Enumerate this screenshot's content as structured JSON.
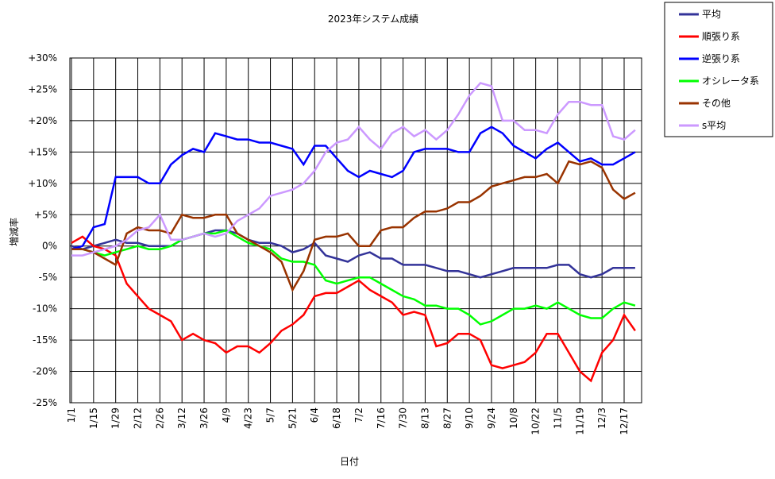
{
  "chart_data": {
    "type": "line",
    "title": "2023年システム成績",
    "x_label": "日付",
    "y_label": "増減率",
    "categories": [
      "1/1",
      null,
      "1/15",
      null,
      "1/29",
      null,
      "2/12",
      null,
      "2/26",
      null,
      "3/12",
      null,
      "3/26",
      null,
      "4/9",
      null,
      "4/23",
      null,
      "5/7",
      null,
      "5/21",
      null,
      "6/4",
      null,
      "6/18",
      null,
      "7/2",
      null,
      "7/16",
      null,
      "7/30",
      null,
      "8/13",
      null,
      "8/27",
      null,
      "9/10",
      null,
      "9/24",
      null,
      "10/8",
      null,
      "10/22",
      null,
      "11/5",
      null,
      "11/19",
      null,
      "12/3",
      null,
      "12/17",
      null
    ],
    "ylim": [
      -25,
      30
    ],
    "yticks": [
      {
        "value": 30,
        "label": "+30%"
      },
      {
        "value": 25,
        "label": "+25%"
      },
      {
        "value": 20,
        "label": "+20%"
      },
      {
        "value": 15,
        "label": "+15%"
      },
      {
        "value": 10,
        "label": "+10%"
      },
      {
        "value": 5,
        "label": "+5%"
      },
      {
        "value": 0,
        "label": "0%"
      },
      {
        "value": -5,
        "label": "-5%"
      },
      {
        "value": -10,
        "label": "-10%"
      },
      {
        "value": -15,
        "label": "-15%"
      },
      {
        "value": -20,
        "label": "-20%"
      },
      {
        "value": -25,
        "label": "-25%"
      }
    ],
    "grid": true,
    "legend": "outside-top-right",
    "series": [
      {
        "name": "平均",
        "color": "#333399",
        "values": [
          0,
          -0.5,
          0,
          0.5,
          1,
          0.5,
          0.5,
          0,
          0,
          0,
          1,
          1.5,
          2,
          2.5,
          2.5,
          2,
          1,
          0.5,
          0.5,
          0,
          -1,
          -0.5,
          0.5,
          -1.5,
          -2,
          -2.5,
          -1.5,
          -1,
          -2,
          -2,
          -3,
          -3,
          -3,
          -3.5,
          -4,
          -4,
          -4.5,
          -5,
          -4.5,
          -4,
          -3.5,
          -3.5,
          -3.5,
          -3.5,
          -3,
          -3,
          -4.5,
          -5,
          -4.5,
          -3.5,
          -3.5,
          -3.5
        ]
      },
      {
        "name": "順張り系",
        "color": "#ff0000",
        "values": [
          0.5,
          1.5,
          0,
          -0.5,
          -1.5,
          -6,
          -8,
          -10,
          -11,
          -12,
          -15,
          -14,
          -15,
          -15.5,
          -17,
          -16,
          -16,
          -17,
          -15.5,
          -13.5,
          -12.5,
          -11,
          -8,
          -7.5,
          -7.5,
          -6.5,
          -5.5,
          -7,
          -8,
          -9,
          -11,
          -10.5,
          -11,
          -16,
          -15.5,
          -14,
          -14,
          -15,
          -19,
          -19.5,
          -19,
          -18.5,
          -17,
          -14,
          -14,
          -17,
          -20,
          -21.5,
          -17,
          -15,
          -11,
          -13.5
        ]
      },
      {
        "name": "逆張り系",
        "color": "#0000ff",
        "values": [
          -0.5,
          0,
          3,
          3.5,
          11,
          11,
          11,
          10,
          10,
          13,
          14.5,
          15.5,
          15,
          18,
          17.5,
          17,
          17,
          16.5,
          16.5,
          16,
          15.5,
          13,
          16,
          16,
          14,
          12,
          11,
          12,
          11.5,
          11,
          12,
          15,
          15.5,
          15.5,
          15.5,
          15,
          15,
          18,
          19,
          18,
          16,
          15,
          14,
          15.5,
          16.5,
          15,
          13.5,
          14,
          13,
          13,
          14,
          15
        ]
      },
      {
        "name": "オシレータ系",
        "color": "#00ff00",
        "values": [
          -0.5,
          -0.5,
          -1,
          -1.5,
          -1,
          -0.5,
          0,
          -0.5,
          -0.5,
          0,
          1,
          1.5,
          2,
          2,
          2.5,
          1.5,
          0.5,
          0,
          -0.5,
          -2,
          -2.5,
          -2.5,
          -3,
          -5.5,
          -6,
          -5.5,
          -5,
          -5,
          -6,
          -7,
          -8,
          -8.5,
          -9.5,
          -9.5,
          -10,
          -10,
          -11,
          -12.5,
          -12,
          -11,
          -10,
          -10,
          -9.5,
          -10,
          -9,
          -10,
          -11,
          -11.5,
          -11.5,
          -10,
          -9,
          -9.5
        ]
      },
      {
        "name": "その他",
        "color": "#993300",
        "values": [
          -0.5,
          -0.5,
          -1,
          -2,
          -3,
          2,
          3,
          2.5,
          2.5,
          2,
          5,
          4.5,
          4.5,
          5,
          5,
          2,
          1,
          0,
          -1,
          -2.5,
          -7,
          -4,
          1,
          1.5,
          1.5,
          2,
          0,
          0,
          2.5,
          3,
          3,
          4.5,
          5.5,
          5.5,
          6,
          7,
          7,
          8,
          9.5,
          10,
          10.5,
          11,
          11,
          11.5,
          10,
          13.5,
          13,
          13.5,
          12.5,
          9,
          7.5,
          8.5
        ]
      },
      {
        "name": "s平均",
        "color": "#cc99ff",
        "values": [
          -1.5,
          -1.5,
          -1,
          -0.5,
          0,
          1,
          2.5,
          3,
          5,
          1,
          1,
          1.5,
          2,
          1.5,
          2,
          4,
          5,
          6,
          8,
          8.5,
          9,
          10,
          12,
          15,
          16.5,
          17,
          19,
          17,
          15.5,
          18,
          19,
          17.5,
          18.5,
          17,
          18.5,
          21,
          24,
          26,
          25.5,
          20,
          20,
          18.5,
          18.5,
          18,
          21,
          23,
          23,
          22.5,
          22.5,
          17.5,
          17,
          18.5
        ]
      }
    ]
  }
}
